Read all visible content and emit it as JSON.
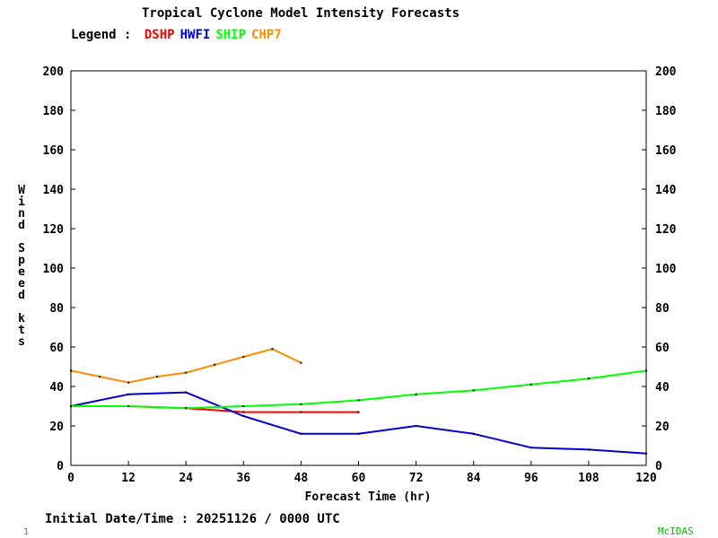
{
  "title": "Tropical Cyclone Model Intensity Forecasts",
  "legend_label": "Legend :",
  "footer": "Initial Date/Time : 20251126 / 0000 UTC",
  "corner_left": "1",
  "corner_right": "McIDAS",
  "chart_data": {
    "type": "line",
    "title": "Tropical Cyclone Model Intensity Forecasts",
    "xlabel": "Forecast Time (hr)",
    "ylabel": "Wind Speed kts",
    "xlim": [
      0,
      120
    ],
    "ylim": [
      0,
      200
    ],
    "xticks": [
      0,
      12,
      24,
      36,
      48,
      60,
      72,
      84,
      96,
      108,
      120
    ],
    "yticks": [
      0,
      20,
      40,
      60,
      80,
      100,
      120,
      140,
      160,
      180,
      200
    ],
    "grid": false,
    "legend_position": "top-left",
    "series": [
      {
        "name": "DSHP",
        "color": "#ff0000",
        "x": [
          0,
          12,
          24,
          36,
          48,
          60
        ],
        "values": [
          30,
          30,
          29,
          27,
          27,
          27
        ]
      },
      {
        "name": "HWFI",
        "color": "#0000d0",
        "x": [
          0,
          12,
          24,
          36,
          48,
          60,
          72,
          84,
          96,
          108,
          120
        ],
        "values": [
          30,
          36,
          37,
          25,
          16,
          16,
          20,
          16,
          9,
          8,
          6
        ]
      },
      {
        "name": "SHIP",
        "color": "#00ff00",
        "x": [
          0,
          12,
          24,
          36,
          48,
          60,
          72,
          84,
          96,
          108,
          120
        ],
        "values": [
          30,
          30,
          29,
          30,
          31,
          33,
          36,
          38,
          41,
          44,
          48
        ]
      },
      {
        "name": "CHP7",
        "color": "#ff8c00",
        "x": [
          0,
          6,
          12,
          18,
          24,
          30,
          36,
          42,
          48
        ],
        "values": [
          48,
          45,
          42,
          45,
          47,
          51,
          55,
          59,
          52
        ]
      }
    ]
  }
}
